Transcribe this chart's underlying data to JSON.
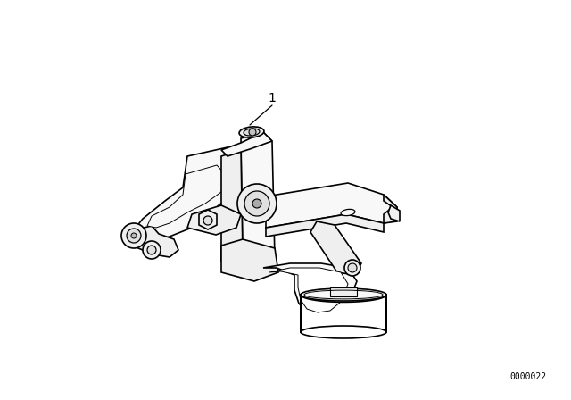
{
  "background_color": "#ffffff",
  "line_color": "#000000",
  "fill_light": "#f8f8f8",
  "fill_mid": "#efefef",
  "fill_dark": "#e0e0e0",
  "label_number": "1",
  "part_code": "0000022",
  "figure_width": 6.4,
  "figure_height": 4.48,
  "dpi": 100
}
